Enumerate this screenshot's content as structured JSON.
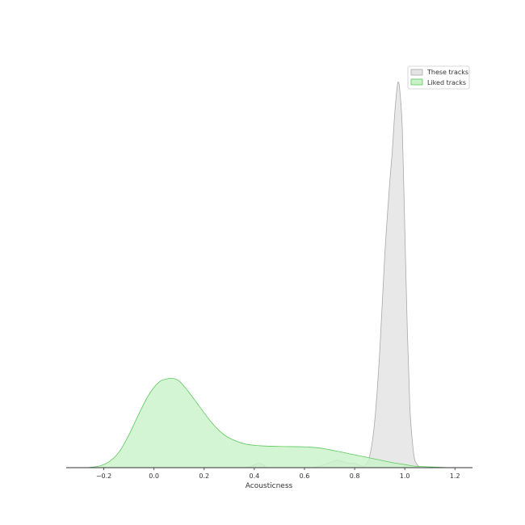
{
  "chart_data": {
    "type": "area",
    "title": "",
    "xlabel": "Acousticness",
    "ylabel": "",
    "xlim": [
      -0.35,
      1.27
    ],
    "ylim": [
      0,
      1.0
    ],
    "x_ticks": [
      -0.2,
      0.0,
      0.2,
      0.4,
      0.6,
      0.8,
      1.0,
      1.2
    ],
    "x_tick_labels": [
      "−0.2",
      "0.0",
      "0.2",
      "0.4",
      "0.6",
      "0.8",
      "1.0",
      "1.2"
    ],
    "grid": false,
    "legend_position": "top-right",
    "series": [
      {
        "name": "These tracks",
        "fill": "#e5e5e5",
        "stroke": "#a8a8a8",
        "x": [
          0.35,
          0.38,
          0.4,
          0.42,
          0.44,
          0.46,
          0.62,
          0.66,
          0.7,
          0.73,
          0.76,
          0.78,
          0.8,
          0.82,
          0.84,
          0.86,
          0.88,
          0.9,
          0.92,
          0.94,
          0.95,
          0.96,
          0.97,
          0.975,
          0.98,
          0.99,
          1.0,
          1.01,
          1.02,
          1.03,
          1.04,
          1.06
        ],
        "y": [
          0.0,
          0.002,
          0.007,
          0.011,
          0.006,
          0.0,
          0.0,
          0.004,
          0.013,
          0.019,
          0.014,
          0.011,
          0.011,
          0.006,
          0.005,
          0.03,
          0.12,
          0.3,
          0.55,
          0.74,
          0.82,
          0.92,
          0.99,
          1.0,
          0.98,
          0.88,
          0.62,
          0.36,
          0.16,
          0.07,
          0.02,
          0.0
        ]
      },
      {
        "name": "Liked tracks",
        "fill": "#c9f2c9",
        "stroke": "#5ec95e",
        "x": [
          -0.27,
          -0.22,
          -0.18,
          -0.14,
          -0.1,
          -0.06,
          -0.02,
          0.02,
          0.05,
          0.07,
          0.1,
          0.14,
          0.18,
          0.22,
          0.26,
          0.3,
          0.36,
          0.42,
          0.5,
          0.6,
          0.66,
          0.72,
          0.78,
          0.84,
          0.9,
          0.96,
          1.0,
          1.04,
          1.1,
          1.16,
          1.2
        ],
        "y": [
          0.0,
          0.004,
          0.015,
          0.04,
          0.085,
          0.14,
          0.19,
          0.222,
          0.23,
          0.232,
          0.225,
          0.195,
          0.16,
          0.125,
          0.096,
          0.077,
          0.062,
          0.057,
          0.055,
          0.054,
          0.051,
          0.044,
          0.036,
          0.028,
          0.02,
          0.012,
          0.008,
          0.004,
          0.002,
          0.0005,
          0.0
        ]
      }
    ]
  }
}
